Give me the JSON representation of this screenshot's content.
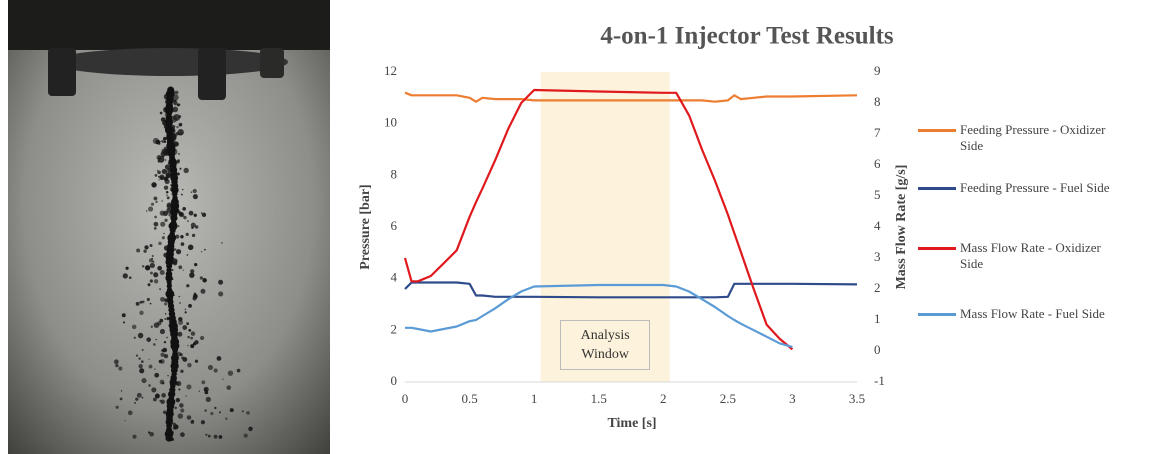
{
  "chart_data": {
    "type": "line",
    "title": "4-on-1 Injector Test Results",
    "x_label": "Time [s]",
    "y_label": "Pressure [bar]",
    "y2_label": "Mass Flow Rate [g/s]",
    "x": [
      0,
      0.05,
      0.1,
      0.2,
      0.3,
      0.4,
      0.5,
      0.55,
      0.6,
      0.7,
      0.8,
      0.9,
      1.0,
      1.5,
      2.0,
      2.1,
      2.2,
      2.3,
      2.4,
      2.5,
      2.55,
      2.6,
      2.7,
      2.8,
      2.9,
      3.0,
      3.5
    ],
    "xlim": [
      0,
      3.5
    ],
    "xticks": [
      0,
      0.5,
      1,
      1.5,
      2,
      2.5,
      3,
      3.5
    ],
    "ylim": [
      0,
      12
    ],
    "yticks": [
      0,
      2,
      4,
      6,
      8,
      10,
      12
    ],
    "y2lim": [
      -1,
      9
    ],
    "y2ticks": [
      -1,
      0,
      1,
      2,
      3,
      4,
      5,
      6,
      7,
      8,
      9
    ],
    "grid": false,
    "legend": "right",
    "highlight": {
      "label": "Analysis Window",
      "xrange": [
        1.05,
        2.05
      ],
      "color": "#fdf3dc"
    },
    "series": [
      {
        "name": "Feeding Pressure - Oxidizer Side",
        "color": "#ED7D31",
        "values": [
          11.2,
          11.1,
          11.1,
          11.1,
          11.1,
          11.1,
          11.0,
          10.85,
          11.0,
          10.95,
          10.95,
          10.95,
          10.9,
          10.9,
          10.9,
          10.9,
          10.9,
          10.9,
          10.85,
          10.9,
          11.1,
          10.95,
          11.0,
          11.05,
          11.05,
          11.05,
          11.1
        ]
      },
      {
        "name": "Feeding Pressure - Fuel Side",
        "color": "#2F4B8C",
        "values": [
          3.6,
          3.85,
          3.85,
          3.85,
          3.85,
          3.85,
          3.8,
          3.35,
          3.35,
          3.3,
          3.3,
          3.3,
          3.3,
          3.28,
          3.28,
          3.28,
          3.28,
          3.28,
          3.28,
          3.3,
          3.8,
          3.8,
          3.8,
          3.8,
          3.8,
          3.8,
          3.78
        ]
      },
      {
        "name": "Mass Flow Rate - Oxidizer Side",
        "color": "#E0191D",
        "axis": "y2",
        "values": [
          3.0,
          2.25,
          2.25,
          2.42,
          2.83,
          3.25,
          4.33,
          4.8,
          5.25,
          6.17,
          7.17,
          8.0,
          8.42,
          8.37,
          8.33,
          8.33,
          7.6,
          6.5,
          5.5,
          4.4,
          3.8,
          3.2,
          2.0,
          0.85,
          0.4,
          0.05,
          null
        ]
      },
      {
        "name": "Mass Flow Rate - Fuel Side",
        "color": "#5B9BD5",
        "axis": "y2",
        "values": [
          0.75,
          0.75,
          0.71,
          0.63,
          0.71,
          0.79,
          0.96,
          1.0,
          1.13,
          1.38,
          1.67,
          1.92,
          2.08,
          2.13,
          2.13,
          2.08,
          1.92,
          1.67,
          1.42,
          1.13,
          1.0,
          0.88,
          0.67,
          0.46,
          0.25,
          0.13,
          null
        ]
      }
    ]
  }
}
